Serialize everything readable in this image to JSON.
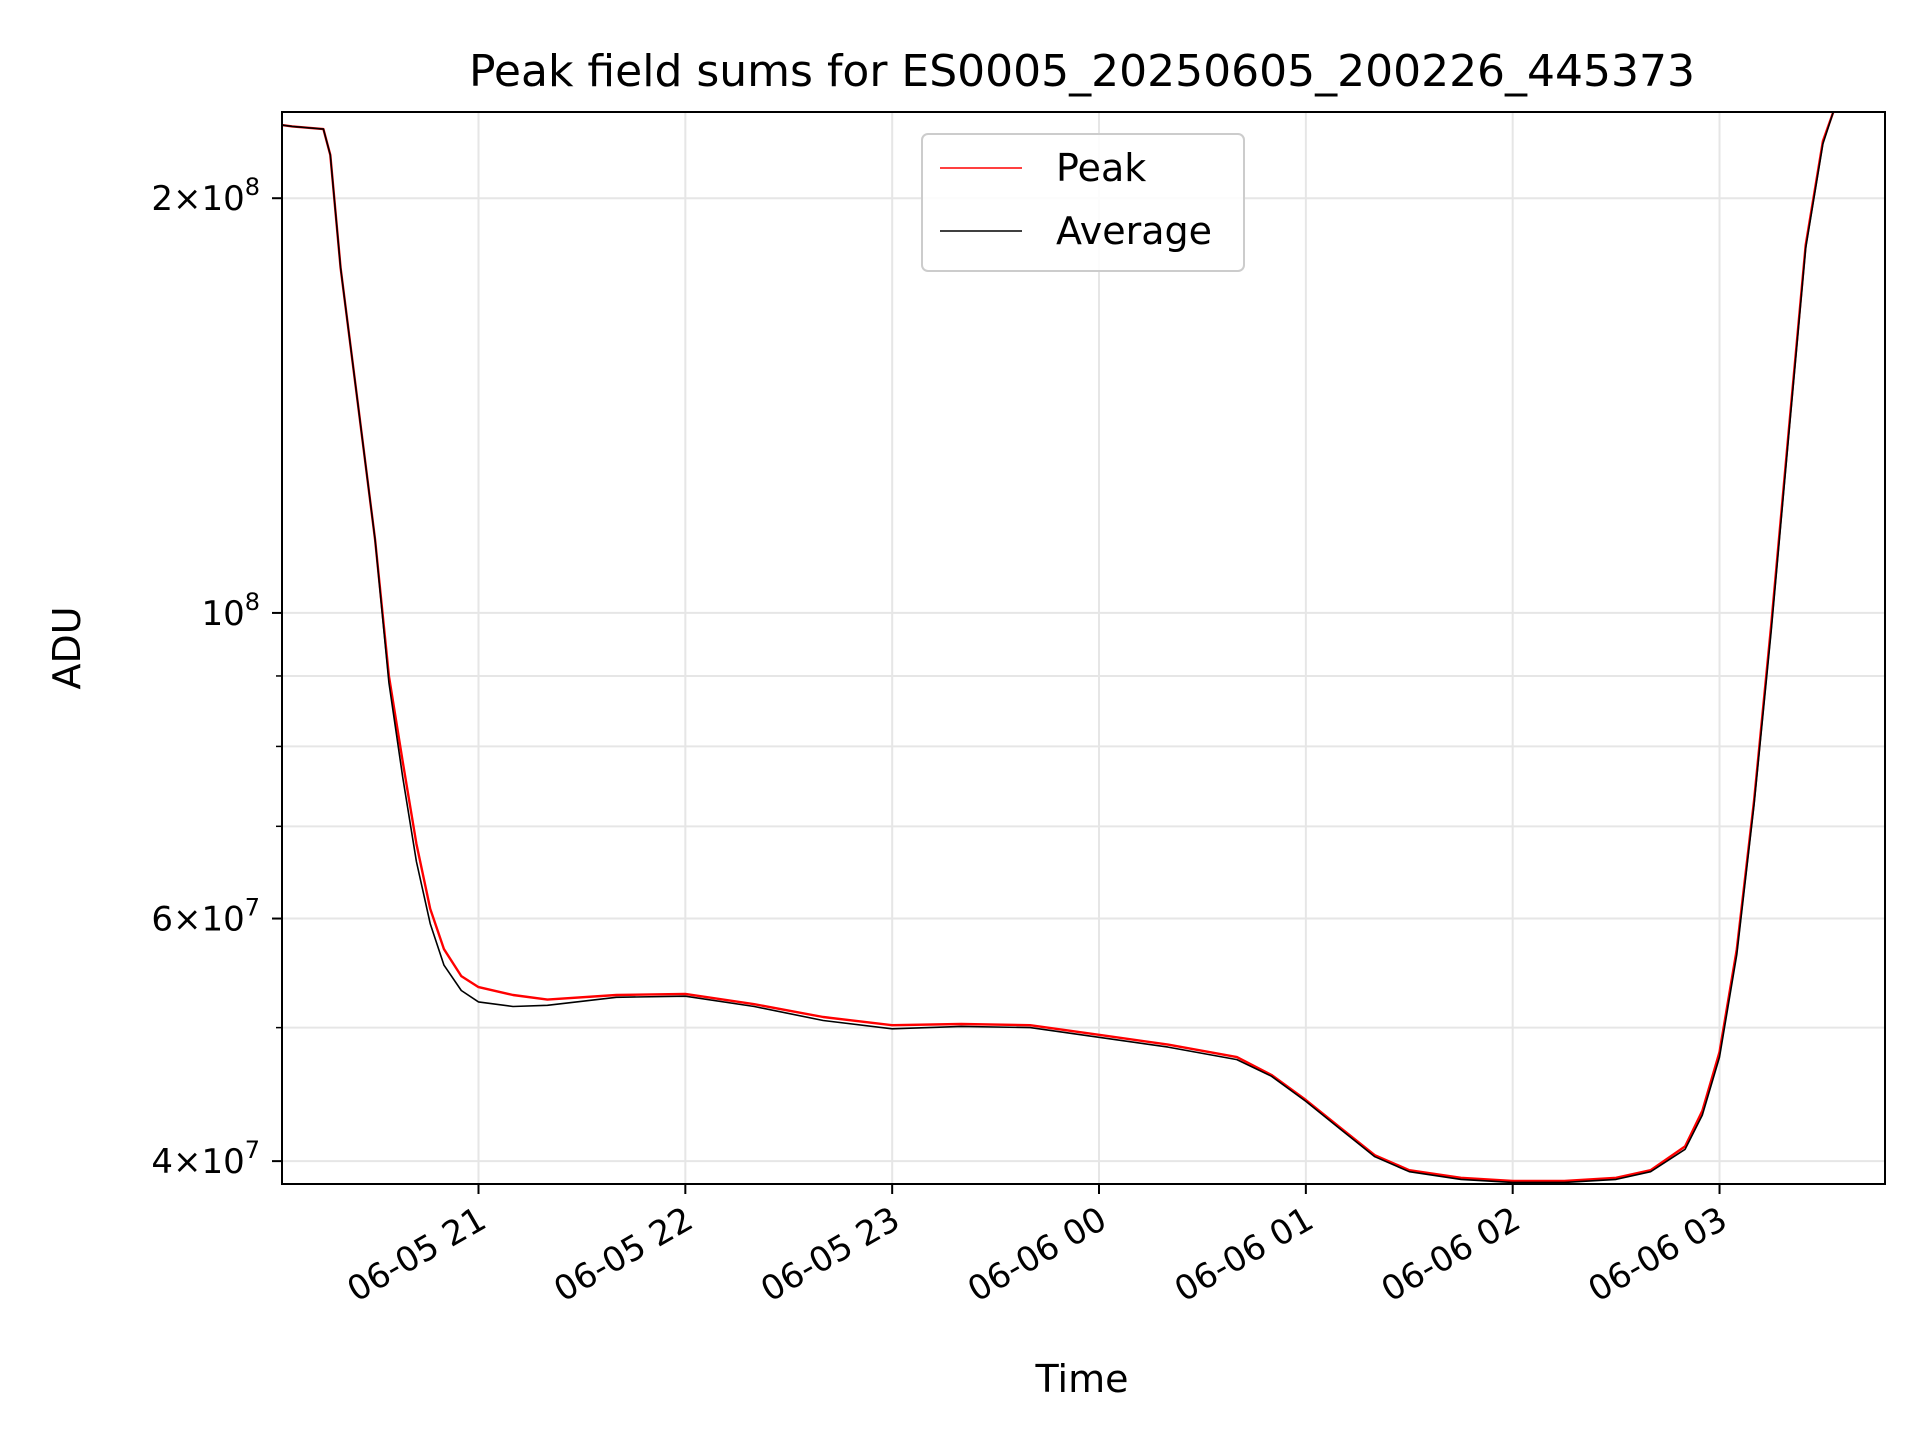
{
  "chart_data": {
    "type": "line",
    "title": "Peak field sums for ES0005_20250605_200226_445373",
    "xlabel": "Time",
    "ylabel": "ADU",
    "y_scale": "log",
    "ylim": [
      38500000,
      231000000
    ],
    "xlim": [
      "2025-06-05 20:03",
      "2025-06-06 03:48"
    ],
    "grid": true,
    "legend_position": "top-center",
    "x_ticks": [
      {
        "value": "2025-06-05 21:00",
        "label": "06-05 21"
      },
      {
        "value": "2025-06-05 22:00",
        "label": "06-05 22"
      },
      {
        "value": "2025-06-05 23:00",
        "label": "06-05 23"
      },
      {
        "value": "2025-06-06 00:00",
        "label": "06-06 00"
      },
      {
        "value": "2025-06-06 01:00",
        "label": "06-06 01"
      },
      {
        "value": "2025-06-06 02:00",
        "label": "06-06 02"
      },
      {
        "value": "2025-06-06 03:00",
        "label": "06-06 03"
      }
    ],
    "y_ticks_major": [
      {
        "value": 40000000,
        "mantissa": "4",
        "exponent": "7",
        "times": true
      },
      {
        "value": 60000000,
        "mantissa": "6",
        "exponent": "7",
        "times": true
      },
      {
        "value": 100000000,
        "mantissa": "",
        "exponent": "8",
        "times": false
      },
      {
        "value": 200000000,
        "mantissa": "2",
        "exponent": "8",
        "times": true
      }
    ],
    "y_ticks_minor": [
      50000000,
      70000000,
      80000000,
      90000000
    ],
    "series": [
      {
        "name": "Peak",
        "color": "#ff0000",
        "points": [
          [
            "2025-06-05 20:03",
            226000000
          ],
          [
            "2025-06-05 20:06",
            225500000
          ],
          [
            "2025-06-05 20:15",
            224500000
          ],
          [
            "2025-06-05 20:17",
            215000000
          ],
          [
            "2025-06-05 20:20",
            178000000
          ],
          [
            "2025-06-05 20:25",
            142000000
          ],
          [
            "2025-06-05 20:30",
            113000000
          ],
          [
            "2025-06-05 20:34",
            90000000
          ],
          [
            "2025-06-05 20:38",
            78000000
          ],
          [
            "2025-06-05 20:42",
            68000000
          ],
          [
            "2025-06-05 20:46",
            61000000
          ],
          [
            "2025-06-05 20:50",
            57000000
          ],
          [
            "2025-06-05 20:55",
            54500000
          ],
          [
            "2025-06-05 21:00",
            53500000
          ],
          [
            "2025-06-05 21:10",
            52800000
          ],
          [
            "2025-06-05 21:20",
            52400000
          ],
          [
            "2025-06-05 21:40",
            52800000
          ],
          [
            "2025-06-05 22:00",
            52900000
          ],
          [
            "2025-06-05 22:20",
            52000000
          ],
          [
            "2025-06-05 22:40",
            50900000
          ],
          [
            "2025-06-05 23:00",
            50200000
          ],
          [
            "2025-06-05 23:20",
            50300000
          ],
          [
            "2025-06-05 23:40",
            50200000
          ],
          [
            "2025-06-06 00:00",
            49400000
          ],
          [
            "2025-06-06 00:20",
            48600000
          ],
          [
            "2025-06-06 00:40",
            47600000
          ],
          [
            "2025-06-06 00:50",
            46200000
          ],
          [
            "2025-06-06 01:00",
            44300000
          ],
          [
            "2025-06-06 01:10",
            42300000
          ],
          [
            "2025-06-06 01:20",
            40400000
          ],
          [
            "2025-06-06 01:30",
            39400000
          ],
          [
            "2025-06-06 01:45",
            38900000
          ],
          [
            "2025-06-06 02:00",
            38700000
          ],
          [
            "2025-06-06 02:15",
            38700000
          ],
          [
            "2025-06-06 02:30",
            38900000
          ],
          [
            "2025-06-06 02:40",
            39400000
          ],
          [
            "2025-06-06 02:50",
            41000000
          ],
          [
            "2025-06-06 02:55",
            43500000
          ],
          [
            "2025-06-06 03:00",
            48000000
          ],
          [
            "2025-06-06 03:05",
            57000000
          ],
          [
            "2025-06-06 03:10",
            73000000
          ],
          [
            "2025-06-06 03:15",
            98000000
          ],
          [
            "2025-06-06 03:20",
            135000000
          ],
          [
            "2025-06-06 03:25",
            185000000
          ],
          [
            "2025-06-06 03:30",
            220000000
          ],
          [
            "2025-06-06 03:33",
            231000000
          ]
        ]
      },
      {
        "name": "Average",
        "color": "#000000",
        "points": [
          [
            "2025-06-05 20:03",
            226000000
          ],
          [
            "2025-06-05 20:06",
            225500000
          ],
          [
            "2025-06-05 20:15",
            224500000
          ],
          [
            "2025-06-05 20:17",
            215000000
          ],
          [
            "2025-06-05 20:20",
            178000000
          ],
          [
            "2025-06-05 20:25",
            142000000
          ],
          [
            "2025-06-05 20:30",
            113000000
          ],
          [
            "2025-06-05 20:34",
            89000000
          ],
          [
            "2025-06-05 20:38",
            76000000
          ],
          [
            "2025-06-05 20:42",
            66000000
          ],
          [
            "2025-06-05 20:46",
            59500000
          ],
          [
            "2025-06-05 20:50",
            55500000
          ],
          [
            "2025-06-05 20:55",
            53200000
          ],
          [
            "2025-06-05 21:00",
            52200000
          ],
          [
            "2025-06-05 21:10",
            51800000
          ],
          [
            "2025-06-05 21:20",
            51900000
          ],
          [
            "2025-06-05 21:40",
            52600000
          ],
          [
            "2025-06-05 22:00",
            52700000
          ],
          [
            "2025-06-05 22:20",
            51800000
          ],
          [
            "2025-06-05 22:40",
            50600000
          ],
          [
            "2025-06-05 23:00",
            49900000
          ],
          [
            "2025-06-05 23:20",
            50100000
          ],
          [
            "2025-06-05 23:40",
            50000000
          ],
          [
            "2025-06-06 00:00",
            49200000
          ],
          [
            "2025-06-06 00:20",
            48400000
          ],
          [
            "2025-06-06 00:40",
            47400000
          ],
          [
            "2025-06-06 00:50",
            46100000
          ],
          [
            "2025-06-06 01:00",
            44200000
          ],
          [
            "2025-06-06 01:10",
            42200000
          ],
          [
            "2025-06-06 01:20",
            40300000
          ],
          [
            "2025-06-06 01:30",
            39300000
          ],
          [
            "2025-06-06 01:45",
            38800000
          ],
          [
            "2025-06-06 02:00",
            38600000
          ],
          [
            "2025-06-06 02:15",
            38600000
          ],
          [
            "2025-06-06 02:30",
            38800000
          ],
          [
            "2025-06-06 02:40",
            39300000
          ],
          [
            "2025-06-06 02:50",
            40800000
          ],
          [
            "2025-06-06 02:55",
            43200000
          ],
          [
            "2025-06-06 03:00",
            47600000
          ],
          [
            "2025-06-06 03:05",
            56500000
          ],
          [
            "2025-06-06 03:10",
            72500000
          ],
          [
            "2025-06-06 03:15",
            97000000
          ],
          [
            "2025-06-06 03:20",
            134000000
          ],
          [
            "2025-06-06 03:25",
            184000000
          ],
          [
            "2025-06-06 03:30",
            219000000
          ],
          [
            "2025-06-06 03:33",
            231000000
          ]
        ]
      }
    ]
  }
}
